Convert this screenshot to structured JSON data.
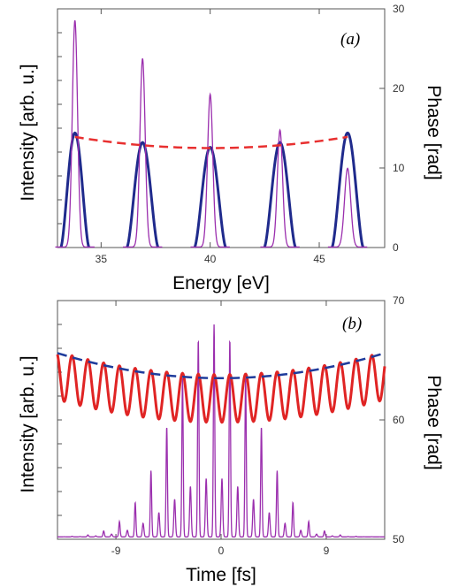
{
  "chart_data": [
    {
      "type": "line",
      "panel_label": "(a)",
      "xlabel": "Energy [eV]",
      "ylabel": "Intensity [arb. u.]",
      "y2label": "Phase [rad]",
      "xlim": [
        33.0,
        48.0
      ],
      "ylim": [
        0,
        30
      ],
      "y2lim": [
        0,
        30
      ],
      "x_ticks": [
        35,
        40,
        45
      ],
      "y2_ticks": [
        0,
        10,
        20,
        30
      ],
      "harmonic_centers": [
        33.8,
        36.9,
        40.0,
        43.2,
        46.3
      ],
      "series": [
        {
          "role": "harmonic-spectrum",
          "color": "#9b2fae",
          "peaks": [
            {
              "x": 33.8,
              "height": 0.95,
              "width": 0.12
            },
            {
              "x": 36.9,
              "height": 0.79,
              "width": 0.12
            },
            {
              "x": 40.0,
              "height": 0.64,
              "width": 0.12
            },
            {
              "x": 43.2,
              "height": 0.49,
              "width": 0.12
            },
            {
              "x": 46.3,
              "height": 0.33,
              "width": 0.14
            }
          ]
        },
        {
          "role": "harmonic-envelope",
          "color": "#1f2a8c",
          "peaks": [
            {
              "x": 33.8,
              "height": 0.48,
              "halfwidth": 0.65
            },
            {
              "x": 36.9,
              "height": 0.44,
              "halfwidth": 0.72
            },
            {
              "x": 40.0,
              "height": 0.42,
              "halfwidth": 0.72
            },
            {
              "x": 43.2,
              "height": 0.44,
              "halfwidth": 0.72
            },
            {
              "x": 46.3,
              "height": 0.48,
              "halfwidth": 0.72
            }
          ]
        },
        {
          "role": "phase",
          "color": "#e83030",
          "dashed": true,
          "x": [
            33.8,
            36.9,
            40.0,
            43.2,
            46.3
          ],
          "y": [
            13.9,
            12.9,
            12.5,
            12.9,
            13.9
          ]
        }
      ]
    },
    {
      "type": "line",
      "panel_label": "(b)",
      "xlabel": "Time [fs]",
      "ylabel": "Intensity [arb. u.]",
      "y2label": "Phase [rad]",
      "xlim": [
        -14,
        14
      ],
      "ylim": [
        50,
        70
      ],
      "y2lim": [
        50,
        70
      ],
      "x_ticks": [
        -9,
        0,
        9
      ],
      "y2_ticks": [
        50,
        60,
        70
      ],
      "pulse_period_fs": 1.35,
      "series": [
        {
          "role": "pulse-train",
          "color": "#9b2fae",
          "peak_center": -0.6,
          "peak_height": 17.8,
          "envelope_width_fs": 5.0,
          "baseline": 50.2
        },
        {
          "role": "phase-oscillation",
          "color": "#e02424",
          "center_curve_min": 61.8,
          "center_curve_max": 63.7,
          "oscillation_amplitude": 2.0
        },
        {
          "role": "phase-fit",
          "color": "#1f3c9c",
          "dashed": true,
          "min": 63.5,
          "max": 65.6
        }
      ]
    }
  ]
}
